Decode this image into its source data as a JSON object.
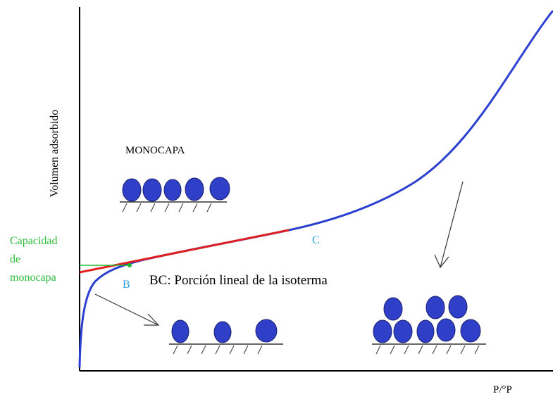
{
  "axes": {
    "y_label": "Volumen adsorbido",
    "x_label": "P/°P"
  },
  "labels": {
    "monolayer": "MONOCAPA",
    "capacity": [
      "Capacidad",
      "de",
      "monocapa"
    ],
    "point_b": "B",
    "point_c": "C",
    "bc_note": "BC: Porción lineal de la isoterma"
  }
}
